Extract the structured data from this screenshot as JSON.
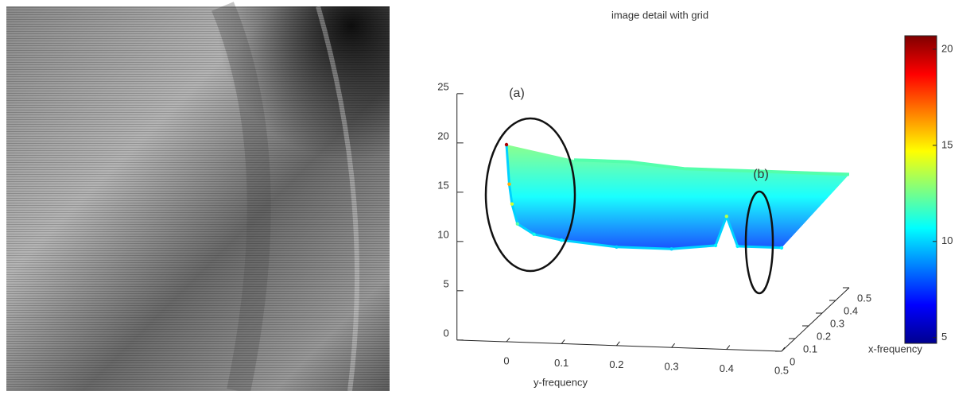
{
  "chart_data": {
    "type": "surface",
    "title": "image detail with grid",
    "y_label": "y-frequency",
    "x_label": "x-frequency",
    "annotations": [
      "(a)",
      "(b)"
    ],
    "ylim": [
      -0.09,
      0.5
    ],
    "yticks": [
      0,
      0.1,
      0.2,
      0.3,
      0.4,
      0.5
    ],
    "xlim": [
      0,
      0.5
    ],
    "xticks": [
      0,
      0.1,
      0.2,
      0.3,
      0.4,
      0.5
    ],
    "zlim": [
      0,
      25
    ],
    "zticks": [
      0,
      5,
      10,
      15,
      20,
      25
    ],
    "clim": [
      4.7,
      20.7
    ],
    "cticks": [
      5,
      10,
      15,
      20
    ],
    "colormap": "jet",
    "ridge": {
      "y": [
        0,
        0.005,
        0.01,
        0.02,
        0.05,
        0.1,
        0.2,
        0.3,
        0.38,
        0.4,
        0.42,
        0.5
      ],
      "z": [
        20,
        16,
        14,
        12,
        11,
        10.5,
        10,
        10,
        10.5,
        13.5,
        10.5,
        10.5
      ],
      "back_z": [
        12,
        12,
        12,
        12,
        12,
        12,
        11.5,
        11.5,
        11.5,
        11.5,
        11.5,
        11.5
      ]
    }
  }
}
